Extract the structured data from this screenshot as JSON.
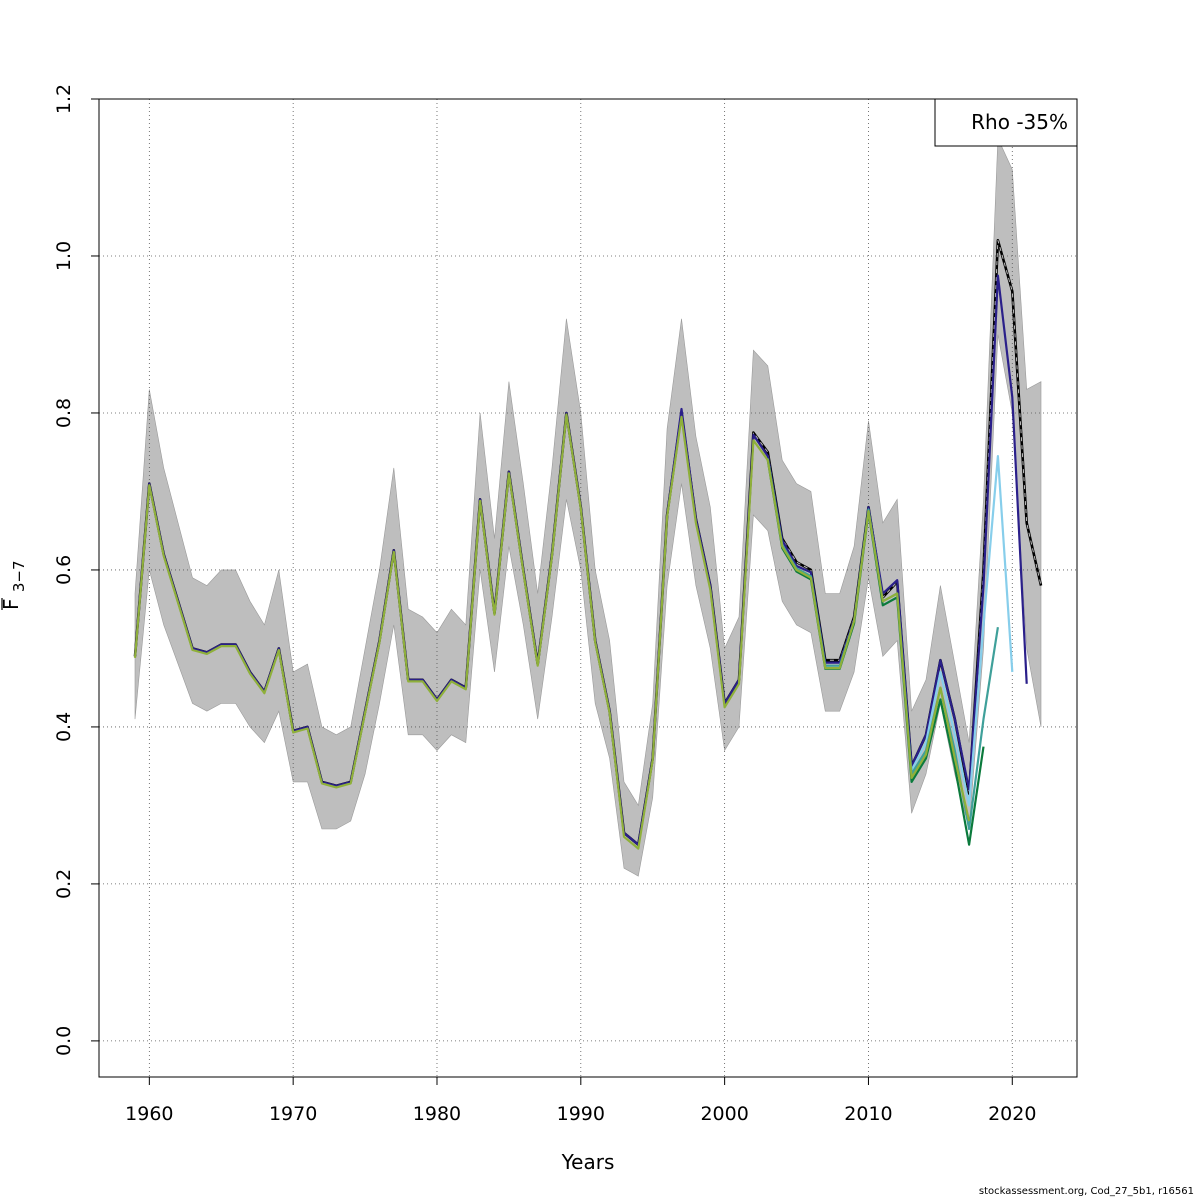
{
  "chart_data": {
    "type": "line",
    "xlabel": "Years",
    "ylabel_main": "F",
    "ylabel_sub": "3−7",
    "xlim": [
      1956.5,
      2024.5
    ],
    "ylim": [
      -0.046,
      1.2
    ],
    "xticks": [
      1960,
      1970,
      1980,
      1990,
      2000,
      2010,
      2020
    ],
    "yticks": [
      0.0,
      0.2,
      0.4,
      0.6,
      0.8,
      1.0,
      1.2
    ],
    "ytick_labels": [
      "0.0",
      "0.2",
      "0.4",
      "0.6",
      "0.8",
      "1.0",
      "1.2"
    ],
    "grid": true,
    "legend": {
      "text": "Rho -35%",
      "placement": "top-right"
    },
    "colors": {
      "band": "#bebebe",
      "base": "#000000",
      "peel1": "#2a1f8a",
      "peel2": "#87ceeb",
      "peel3": "#3fa09a",
      "peel4": "#0b7a3c",
      "peel5": "#5a9e2e",
      "peel6": "#8fb03a"
    },
    "band": {
      "x": [
        1959,
        1960,
        1961,
        1962,
        1963,
        1964,
        1965,
        1966,
        1967,
        1968,
        1969,
        1970,
        1971,
        1972,
        1973,
        1974,
        1975,
        1976,
        1977,
        1978,
        1979,
        1980,
        1981,
        1982,
        1983,
        1984,
        1985,
        1986,
        1987,
        1988,
        1989,
        1990,
        1991,
        1992,
        1993,
        1994,
        1995,
        1996,
        1997,
        1998,
        1999,
        2000,
        2001,
        2002,
        2003,
        2004,
        2005,
        2006,
        2007,
        2008,
        2009,
        2010,
        2011,
        2012,
        2013,
        2014,
        2015,
        2016,
        2017,
        2018,
        2019,
        2020,
        2021,
        2022
      ],
      "upper": [
        0.57,
        0.83,
        0.73,
        0.66,
        0.59,
        0.58,
        0.6,
        0.6,
        0.56,
        0.53,
        0.6,
        0.47,
        0.48,
        0.4,
        0.39,
        0.4,
        0.5,
        0.6,
        0.73,
        0.55,
        0.54,
        0.52,
        0.55,
        0.53,
        0.8,
        0.64,
        0.84,
        0.71,
        0.57,
        0.73,
        0.92,
        0.8,
        0.6,
        0.51,
        0.33,
        0.3,
        0.43,
        0.78,
        0.92,
        0.77,
        0.68,
        0.5,
        0.54,
        0.88,
        0.86,
        0.74,
        0.71,
        0.7,
        0.57,
        0.57,
        0.63,
        0.79,
        0.66,
        0.69,
        0.42,
        0.46,
        0.58,
        0.48,
        0.38,
        0.69,
        1.15,
        1.11,
        0.83,
        0.84
      ],
      "lower": [
        0.41,
        0.6,
        0.53,
        0.48,
        0.43,
        0.42,
        0.43,
        0.43,
        0.4,
        0.38,
        0.42,
        0.33,
        0.33,
        0.27,
        0.27,
        0.28,
        0.34,
        0.43,
        0.53,
        0.39,
        0.39,
        0.37,
        0.39,
        0.38,
        0.6,
        0.47,
        0.63,
        0.53,
        0.41,
        0.54,
        0.69,
        0.6,
        0.43,
        0.36,
        0.22,
        0.21,
        0.31,
        0.58,
        0.71,
        0.58,
        0.5,
        0.37,
        0.4,
        0.67,
        0.65,
        0.56,
        0.53,
        0.52,
        0.42,
        0.42,
        0.47,
        0.59,
        0.49,
        0.51,
        0.29,
        0.34,
        0.43,
        0.34,
        0.27,
        0.5,
        0.9,
        0.8,
        0.5,
        0.4
      ]
    },
    "series": [
      {
        "color": "#000000",
        "dashed": true,
        "x": [
          1959,
          1960,
          1961,
          1962,
          1963,
          1964,
          1965,
          1966,
          1967,
          1968,
          1969,
          1970,
          1971,
          1972,
          1973,
          1974,
          1975,
          1976,
          1977,
          1978,
          1979,
          1980,
          1981,
          1982,
          1983,
          1984,
          1985,
          1986,
          1987,
          1988,
          1989,
          1990,
          1991,
          1992,
          1993,
          1994,
          1995,
          1996,
          1997,
          1998,
          1999,
          2000,
          2001,
          2002,
          2003,
          2004,
          2005,
          2006,
          2007,
          2008,
          2009,
          2010,
          2011,
          2012,
          2013,
          2014,
          2015,
          2016,
          2017,
          2018,
          2019,
          2020,
          2021,
          2022
        ],
        "y": [
          0.49,
          0.71,
          0.62,
          0.56,
          0.5,
          0.495,
          0.505,
          0.505,
          0.47,
          0.445,
          0.5,
          0.395,
          0.4,
          0.33,
          0.325,
          0.33,
          0.42,
          0.51,
          0.625,
          0.46,
          0.46,
          0.435,
          0.46,
          0.45,
          0.69,
          0.545,
          0.725,
          0.6,
          0.48,
          0.62,
          0.8,
          0.68,
          0.51,
          0.42,
          0.265,
          0.25,
          0.36,
          0.67,
          0.8,
          0.665,
          0.58,
          0.43,
          0.46,
          0.775,
          0.75,
          0.64,
          0.61,
          0.6,
          0.485,
          0.485,
          0.54,
          0.68,
          0.565,
          0.585,
          0.35,
          0.39,
          0.485,
          0.41,
          0.315,
          0.6,
          1.02,
          0.955,
          0.66,
          0.58
        ]
      },
      {
        "color": "#2a1f8a",
        "dashed": false,
        "x": [
          1959,
          1960,
          1961,
          1962,
          1963,
          1964,
          1965,
          1966,
          1967,
          1968,
          1969,
          1970,
          1971,
          1972,
          1973,
          1974,
          1975,
          1976,
          1977,
          1978,
          1979,
          1980,
          1981,
          1982,
          1983,
          1984,
          1985,
          1986,
          1987,
          1988,
          1989,
          1990,
          1991,
          1992,
          1993,
          1994,
          1995,
          1996,
          1997,
          1998,
          1999,
          2000,
          2001,
          2002,
          2003,
          2004,
          2005,
          2006,
          2007,
          2008,
          2009,
          2010,
          2011,
          2012,
          2013,
          2014,
          2015,
          2016,
          2017,
          2018,
          2019,
          2020,
          2021
        ],
        "y": [
          0.49,
          0.71,
          0.62,
          0.56,
          0.5,
          0.495,
          0.505,
          0.505,
          0.47,
          0.445,
          0.5,
          0.395,
          0.4,
          0.33,
          0.325,
          0.33,
          0.42,
          0.51,
          0.625,
          0.46,
          0.46,
          0.435,
          0.46,
          0.45,
          0.69,
          0.545,
          0.725,
          0.6,
          0.48,
          0.62,
          0.8,
          0.68,
          0.51,
          0.42,
          0.265,
          0.25,
          0.36,
          0.67,
          0.805,
          0.665,
          0.58,
          0.43,
          0.46,
          0.772,
          0.745,
          0.638,
          0.605,
          0.597,
          0.482,
          0.482,
          0.537,
          0.68,
          0.57,
          0.587,
          0.35,
          0.39,
          0.485,
          0.41,
          0.32,
          0.58,
          0.975,
          0.82,
          0.455
        ]
      },
      {
        "color": "#87ceeb",
        "dashed": false,
        "x": [
          2013,
          2014,
          2015,
          2016,
          2017,
          2018,
          2019,
          2020
        ],
        "y": [
          0.345,
          0.38,
          0.47,
          0.39,
          0.3,
          0.53,
          0.745,
          0.47
        ]
      },
      {
        "color": "#3fa09a",
        "dashed": false,
        "x": [
          2003,
          2004,
          2005,
          2006,
          2007,
          2008,
          2009,
          2010,
          2011,
          2012,
          2013,
          2014,
          2015,
          2016,
          2017,
          2018,
          2019
        ],
        "y": [
          0.742,
          0.632,
          0.602,
          0.592,
          0.478,
          0.478,
          0.535,
          0.677,
          0.56,
          0.57,
          0.34,
          0.37,
          0.45,
          0.37,
          0.27,
          0.41,
          0.527
        ]
      },
      {
        "color": "#0b7a3c",
        "dashed": false,
        "x": [
          2003,
          2004,
          2005,
          2006,
          2007,
          2008,
          2009,
          2010,
          2011,
          2012,
          2013,
          2014,
          2015,
          2016,
          2017,
          2018
        ],
        "y": [
          0.74,
          0.628,
          0.598,
          0.588,
          0.474,
          0.474,
          0.532,
          0.674,
          0.555,
          0.565,
          0.33,
          0.36,
          0.435,
          0.35,
          0.25,
          0.375
        ]
      },
      {
        "color": "#8fb03a",
        "dashed": false,
        "x": [
          1959,
          1960,
          1961,
          1962,
          1963,
          1964,
          1965,
          1966,
          1967,
          1968,
          1969,
          1970,
          1971,
          1972,
          1973,
          1974,
          1975,
          1976,
          1977,
          1978,
          1979,
          1980,
          1981,
          1982,
          1983,
          1984,
          1985,
          1986,
          1987,
          1988,
          1989,
          1990,
          1991,
          1992,
          1993,
          1994,
          1995,
          1996,
          1997,
          1998,
          1999,
          2000,
          2001,
          2002,
          2003,
          2004,
          2005,
          2006,
          2007,
          2008,
          2009,
          2010,
          2011,
          2012,
          2013,
          2014,
          2015,
          2016,
          2017
        ],
        "y": [
          0.488,
          0.708,
          0.618,
          0.558,
          0.498,
          0.493,
          0.503,
          0.503,
          0.468,
          0.443,
          0.498,
          0.393,
          0.398,
          0.328,
          0.323,
          0.328,
          0.418,
          0.508,
          0.623,
          0.458,
          0.458,
          0.433,
          0.458,
          0.448,
          0.688,
          0.543,
          0.723,
          0.598,
          0.478,
          0.618,
          0.798,
          0.678,
          0.508,
          0.418,
          0.26,
          0.245,
          0.358,
          0.668,
          0.795,
          0.66,
          0.575,
          0.425,
          0.455,
          0.765,
          0.74,
          0.63,
          0.6,
          0.59,
          0.475,
          0.475,
          0.535,
          0.675,
          0.56,
          0.57,
          0.335,
          0.365,
          0.45,
          0.36,
          0.28
        ]
      }
    ]
  },
  "footer": "stockassessment.org, Cod_27_5b1, r16561"
}
